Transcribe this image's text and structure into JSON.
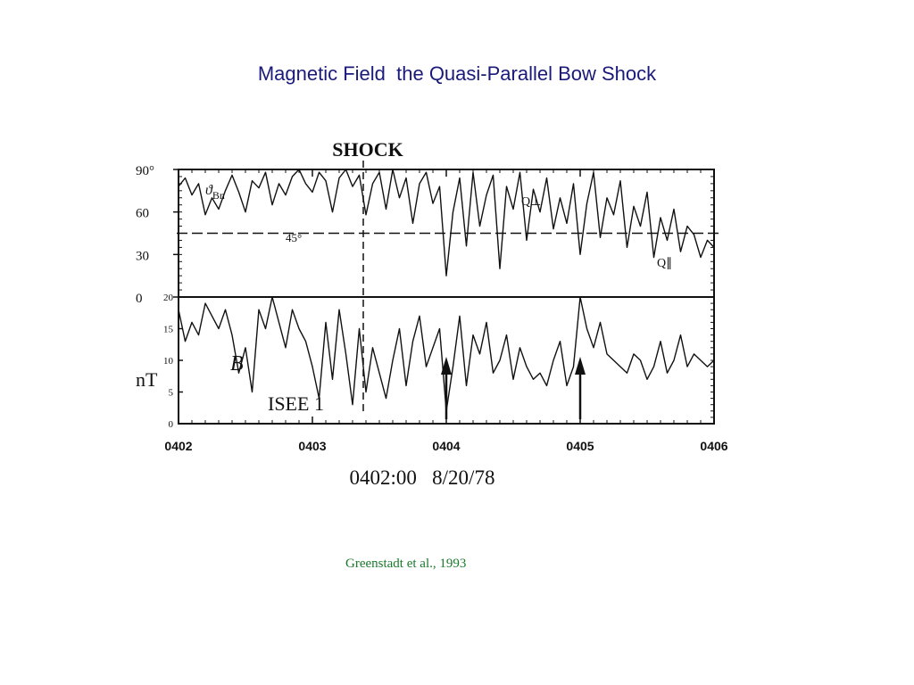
{
  "slide": {
    "title": "Magnetic Field  the Quasi-Parallel Bow Shock",
    "citation": "Greenstadt et al., 1993"
  },
  "chart_data": {
    "type": "line",
    "shock_label": "SHOCK",
    "spacecraft_label": "ISEE 1",
    "date_label": "0402:00   8/20/78",
    "x_ticks": [
      "0402",
      "0403",
      "0404",
      "0405",
      "0406"
    ],
    "x_minutes": [
      0,
      1,
      2,
      3,
      4
    ],
    "shock_time": 1.38,
    "arrow_times": [
      2.0,
      3.0
    ],
    "theta_panel": {
      "label_symbol": "ϑ",
      "label_sub": "Bn",
      "ylim": [
        0,
        90
      ],
      "y_ticks": [
        "90°",
        "60",
        "30",
        "0"
      ],
      "y_tick_values": [
        90,
        60,
        30,
        0
      ],
      "reference_line": 45,
      "reference_label": "45°",
      "annotations": [
        "Q⊥",
        "Q∥"
      ],
      "series": [
        {
          "name": "ϑBn",
          "x": [
            0.0,
            0.05,
            0.1,
            0.15,
            0.2,
            0.25,
            0.3,
            0.35,
            0.4,
            0.45,
            0.5,
            0.55,
            0.6,
            0.65,
            0.7,
            0.75,
            0.8,
            0.85,
            0.9,
            0.95,
            1.0,
            1.05,
            1.1,
            1.15,
            1.2,
            1.25,
            1.3,
            1.35,
            1.4,
            1.45,
            1.5,
            1.55,
            1.6,
            1.65,
            1.7,
            1.75,
            1.8,
            1.85,
            1.9,
            1.95,
            2.0,
            2.05,
            2.1,
            2.15,
            2.2,
            2.25,
            2.3,
            2.35,
            2.4,
            2.45,
            2.5,
            2.55,
            2.6,
            2.65,
            2.7,
            2.75,
            2.8,
            2.85,
            2.9,
            2.95,
            3.0,
            3.05,
            3.1,
            3.15,
            3.2,
            3.25,
            3.3,
            3.35,
            3.4,
            3.45,
            3.5,
            3.55,
            3.6,
            3.65,
            3.7,
            3.75,
            3.8,
            3.85,
            3.9,
            3.95,
            4.0
          ],
          "values": [
            78,
            84,
            72,
            80,
            58,
            70,
            62,
            75,
            86,
            74,
            60,
            82,
            77,
            88,
            65,
            80,
            72,
            85,
            90,
            80,
            74,
            88,
            82,
            60,
            84,
            90,
            78,
            86,
            58,
            80,
            88,
            62,
            90,
            70,
            84,
            52,
            80,
            88,
            66,
            78,
            15,
            60,
            84,
            36,
            88,
            50,
            72,
            86,
            20,
            78,
            62,
            88,
            40,
            76,
            60,
            84,
            48,
            70,
            52,
            80,
            30,
            66,
            88,
            42,
            70,
            58,
            82,
            35,
            64,
            50,
            74,
            28,
            56,
            40,
            62,
            32,
            50,
            44,
            28,
            40,
            35
          ]
        }
      ]
    },
    "b_panel": {
      "label": "B",
      "unit": "nT",
      "ylim": [
        0,
        20
      ],
      "y_ticks": [
        "20",
        "15",
        "10",
        "5",
        "0"
      ],
      "y_tick_values": [
        20,
        15,
        10,
        5,
        0
      ],
      "series": [
        {
          "name": "B",
          "x": [
            0.0,
            0.05,
            0.1,
            0.15,
            0.2,
            0.25,
            0.3,
            0.35,
            0.4,
            0.45,
            0.5,
            0.55,
            0.6,
            0.65,
            0.7,
            0.75,
            0.8,
            0.85,
            0.9,
            0.95,
            1.0,
            1.05,
            1.1,
            1.15,
            1.2,
            1.25,
            1.3,
            1.35,
            1.4,
            1.45,
            1.5,
            1.55,
            1.6,
            1.65,
            1.7,
            1.75,
            1.8,
            1.85,
            1.9,
            1.95,
            2.0,
            2.05,
            2.1,
            2.15,
            2.2,
            2.25,
            2.3,
            2.35,
            2.4,
            2.45,
            2.5,
            2.55,
            2.6,
            2.65,
            2.7,
            2.75,
            2.8,
            2.85,
            2.9,
            2.95,
            3.0,
            3.05,
            3.1,
            3.15,
            3.2,
            3.25,
            3.3,
            3.35,
            3.4,
            3.45,
            3.5,
            3.55,
            3.6,
            3.65,
            3.7,
            3.75,
            3.8,
            3.85,
            3.9,
            3.95,
            4.0
          ],
          "values": [
            18,
            13,
            16,
            14,
            19,
            17,
            15,
            18,
            14,
            8,
            12,
            5,
            18,
            15,
            20,
            16,
            12,
            18,
            15,
            13,
            9,
            4,
            16,
            7,
            18,
            11,
            3,
            15,
            5,
            12,
            8,
            4,
            10,
            15,
            6,
            13,
            17,
            9,
            12,
            15,
            2,
            9,
            17,
            6,
            14,
            11,
            16,
            8,
            10,
            14,
            7,
            12,
            9,
            7,
            8,
            6,
            10,
            13,
            6,
            9,
            20,
            15,
            12,
            16,
            11,
            10,
            9,
            8,
            11,
            10,
            7,
            9,
            13,
            8,
            10,
            14,
            9,
            11,
            10,
            9,
            10
          ]
        }
      ]
    }
  }
}
